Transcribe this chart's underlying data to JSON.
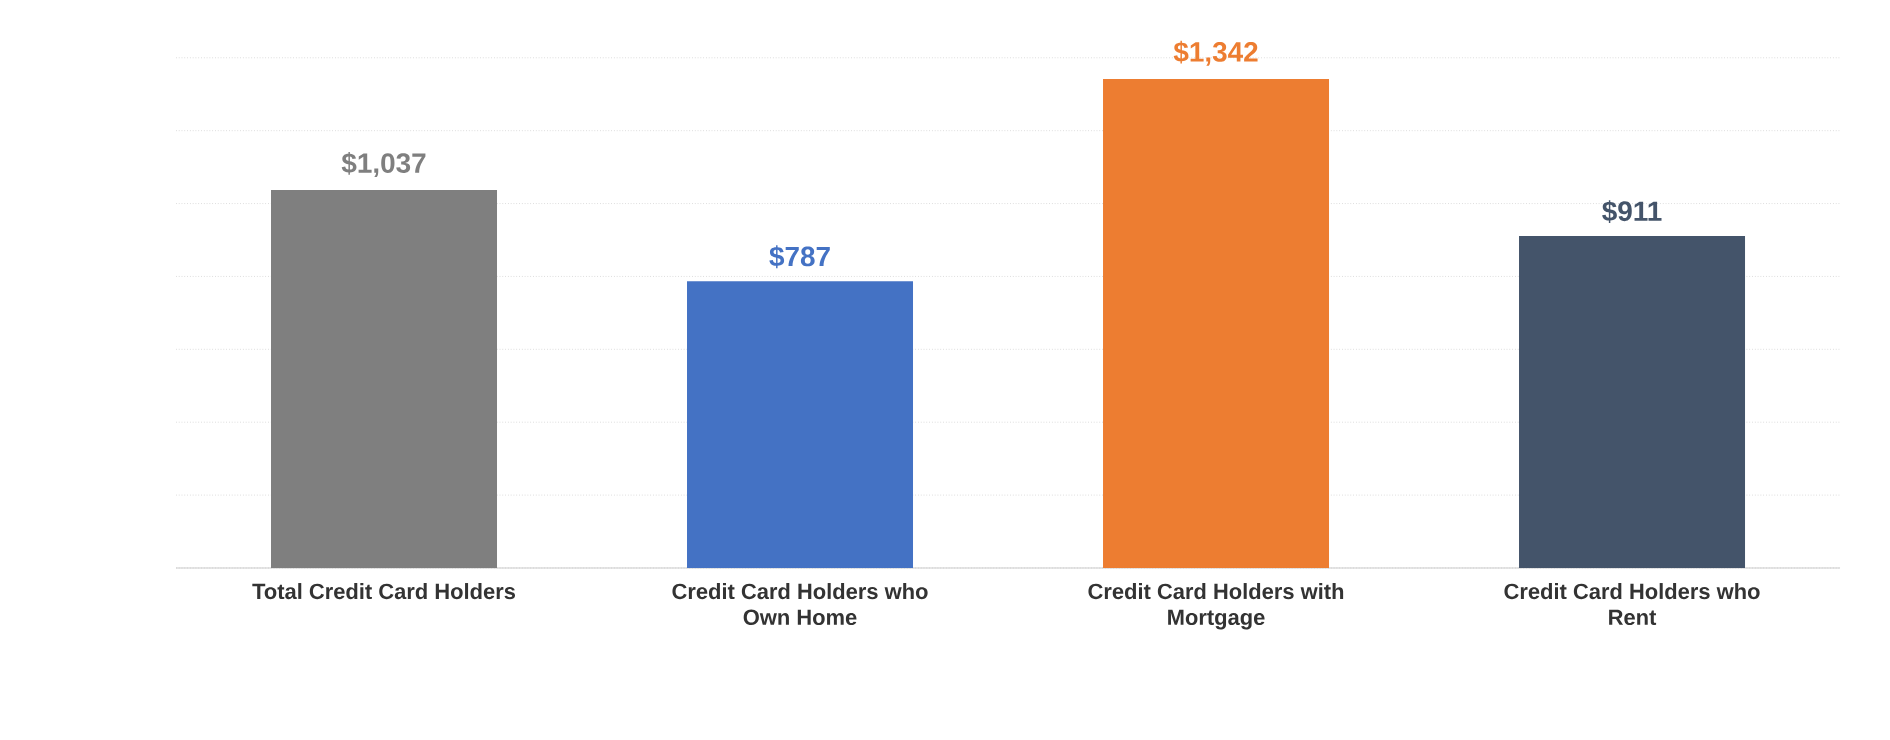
{
  "chart_data": {
    "type": "bar",
    "categories": [
      "Total Credit Card Holders",
      "Credit Card Holders who Own Home",
      "Credit Card Holders with Mortgage",
      "Credit Card Holders who Rent"
    ],
    "values": [
      1037,
      787,
      1342,
      911
    ],
    "colors": [
      "#7f7f7f",
      "#4472c4",
      "#ed7d31",
      "#44546a"
    ],
    "value_labels": [
      "$1,037",
      "$787",
      "$1,342",
      "$911"
    ],
    "tick_labels": "x",
    "grid": "y"
  }
}
